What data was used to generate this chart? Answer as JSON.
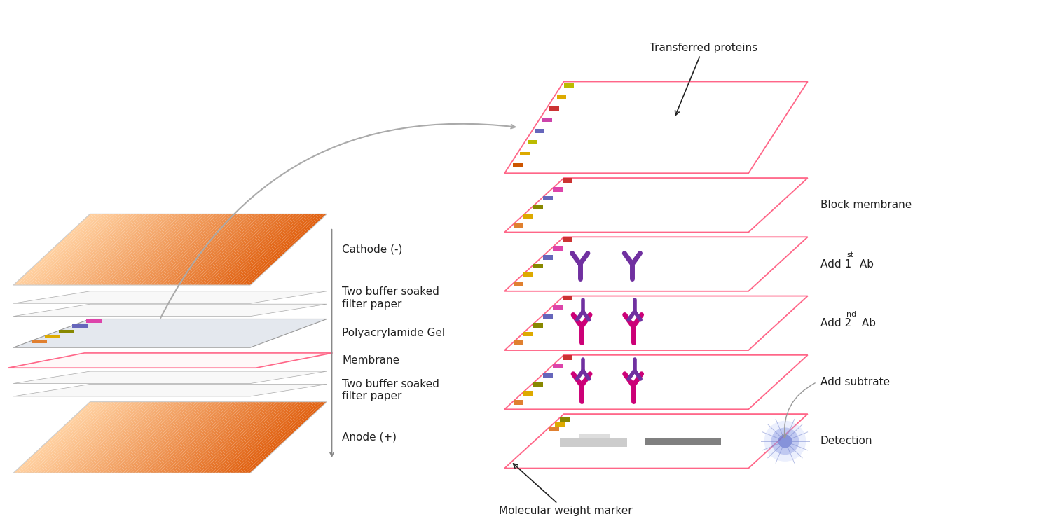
{
  "bg_color": "#ffffff",
  "left_labels": [
    [
      "Cathode (-)",
      1
    ],
    [
      "Two buffer soaked\nfilter paper",
      2
    ],
    [
      "Polyacrylamide Gel",
      1
    ],
    [
      "Membrane",
      1
    ],
    [
      "Two buffer soaked\nfilter paper",
      2
    ],
    [
      "Anode (+)",
      1
    ]
  ],
  "right_labels": [
    "Block membrane",
    "Add 1ˢᵗ Ab",
    "Add 2ⁿᵈ Ab",
    "Add subtrate",
    "Detection"
  ],
  "marker_colors_gel": [
    "#e08030",
    "#ddaa00",
    "#888800",
    "#6666bb",
    "#dd44aa"
  ],
  "marker_colors_right": [
    "#e08030",
    "#ddaa00",
    "#888800",
    "#6666bb",
    "#dd44aa",
    "#cc3333"
  ],
  "pink": "#ff6688",
  "gray_edge": "#aaaaaa",
  "purple": "#7030a0",
  "hot_pink": "#cc0077",
  "font_size": 11,
  "arrow_color": "#999999",
  "orange_dark": "#e06010",
  "orange_light": "#ffd0a0"
}
